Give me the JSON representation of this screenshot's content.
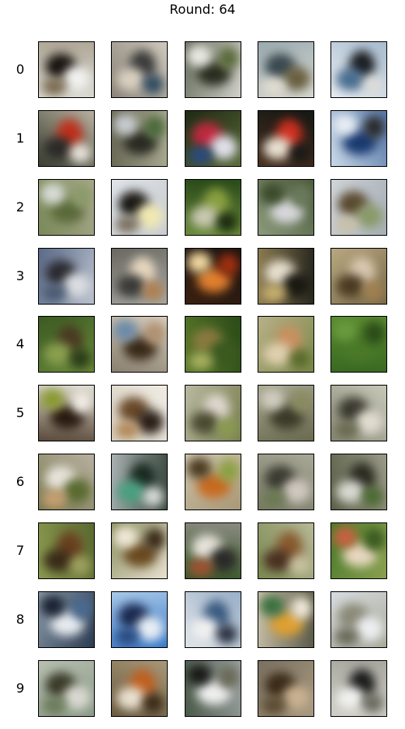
{
  "title": "Round: 64",
  "rows": [
    {
      "label": "0",
      "samples": [
        {
          "bg": [
            "#d8d8d0",
            "#b0a898"
          ],
          "c": [
            "#1a1410",
            "#f0f0ee",
            "#7a6a50"
          ]
        },
        {
          "bg": [
            "#8a8478",
            "#cfc9bd"
          ],
          "c": [
            "#3a3a3a",
            "#d8d0c0",
            "#2e4a60"
          ]
        },
        {
          "bg": [
            "#6a7060",
            "#d0d0c8"
          ],
          "c": [
            "#2a2e20",
            "#eaeae4",
            "#5a6a3a"
          ]
        },
        {
          "bg": [
            "#9aaab0",
            "#d8d8d0"
          ],
          "c": [
            "#3a4a50",
            "#6a6040",
            "#e0dcd0"
          ]
        },
        {
          "bg": [
            "#a8bcd0",
            "#e8ecf0"
          ],
          "c": [
            "#1a1e22",
            "#4a6e90",
            "#dcdcd8"
          ]
        }
      ]
    },
    {
      "label": "1",
      "samples": [
        {
          "bg": [
            "#3a4030",
            "#b8b0a0"
          ],
          "c": [
            "#c0301c",
            "#2a2a28",
            "#e8e4dc"
          ]
        },
        {
          "bg": [
            "#6a6a58",
            "#a8a890"
          ],
          "c": [
            "#2a2a22",
            "#c8ccd0",
            "#4a6a3a"
          ]
        },
        {
          "bg": [
            "#1e2a14",
            "#5a6a3a"
          ],
          "c": [
            "#c02840",
            "#e0e0ea",
            "#2a4a80"
          ]
        },
        {
          "bg": [
            "#141814",
            "#4a3020"
          ],
          "c": [
            "#d03020",
            "#e8e0d0",
            "#1a1a18"
          ]
        },
        {
          "bg": [
            "#5a7aa8",
            "#c8d8e8"
          ],
          "c": [
            "#1a3a70",
            "#e8eef4",
            "#2a2a2a"
          ]
        }
      ]
    },
    {
      "label": "2",
      "samples": [
        {
          "bg": [
            "#7a8a5a",
            "#a8a88a"
          ],
          "c": [
            "#5a6a3a",
            "#d8dcd8",
            "#8a9a6a"
          ]
        },
        {
          "bg": [
            "#e0e4e8",
            "#c8ccd0"
          ],
          "c": [
            "#1a1814",
            "#f0e8b0",
            "#7a7060"
          ]
        },
        {
          "bg": [
            "#2a4a1a",
            "#6a8a3a"
          ],
          "c": [
            "#8aa040",
            "#c8c8b0",
            "#1a2a10"
          ]
        },
        {
          "bg": [
            "#4a5a3a",
            "#8a9a7a"
          ],
          "c": [
            "#d8d8dc",
            "#3a4a2a",
            "#6a7a5a"
          ]
        },
        {
          "bg": [
            "#a8b0b8",
            "#d0d4d8"
          ],
          "c": [
            "#5a4a30",
            "#8a9a6a",
            "#c8c0a8"
          ]
        }
      ]
    },
    {
      "label": "3",
      "samples": [
        {
          "bg": [
            "#5a6a88",
            "#b8c0cc"
          ],
          "c": [
            "#2a2a30",
            "#dadce0",
            "#4a5a70"
          ]
        },
        {
          "bg": [
            "#6a6860",
            "#a8a8a4"
          ],
          "c": [
            "#e8d8c0",
            "#3a3a38",
            "#b08050"
          ]
        },
        {
          "bg": [
            "#1a1410",
            "#3a2010"
          ],
          "c": [
            "#e08030",
            "#f0d8a0",
            "#a03010"
          ]
        },
        {
          "bg": [
            "#2a2a20",
            "#8a7a50"
          ],
          "c": [
            "#e8e0d0",
            "#1a1812",
            "#c8b070"
          ]
        },
        {
          "bg": [
            "#7a6a4a",
            "#b8a880"
          ],
          "c": [
            "#d8c8b0",
            "#4a3a22",
            "#a08050"
          ]
        }
      ]
    },
    {
      "label": "4",
      "samples": [
        {
          "bg": [
            "#3a5a22",
            "#6a8a3a"
          ],
          "c": [
            "#4a3a22",
            "#8aa050",
            "#2a3a18"
          ]
        },
        {
          "bg": [
            "#d8d0c0",
            "#8a8070"
          ],
          "c": [
            "#3a2a18",
            "#6a8aa8",
            "#b09070"
          ]
        },
        {
          "bg": [
            "#2a4a18",
            "#5a7a2a"
          ],
          "c": [
            "#8a7a40",
            "#3a5a20",
            "#a8b060"
          ]
        },
        {
          "bg": [
            "#7a8a4a",
            "#b8b088"
          ],
          "c": [
            "#c89060",
            "#e0d0b0",
            "#5a6a2a"
          ]
        },
        {
          "bg": [
            "#3a6a22",
            "#5a8a30"
          ],
          "c": [
            "#4a7a28",
            "#6a9a40",
            "#2a4a18"
          ]
        }
      ]
    },
    {
      "label": "5",
      "samples": [
        {
          "bg": [
            "#e0dcd0",
            "#5a4a3a"
          ],
          "c": [
            "#2a1a10",
            "#8a9a30",
            "#f0ece4"
          ]
        },
        {
          "bg": [
            "#f0ece4",
            "#d8d0c0"
          ],
          "c": [
            "#6a4a2a",
            "#2a2018",
            "#b08858"
          ]
        },
        {
          "bg": [
            "#7a8050",
            "#b8b8a0"
          ],
          "c": [
            "#e0d8d0",
            "#4a4a30",
            "#8a9a50"
          ]
        },
        {
          "bg": [
            "#6a6a50",
            "#a8a890"
          ],
          "c": [
            "#3a3a28",
            "#d0ccc0",
            "#8a8a60"
          ]
        },
        {
          "bg": [
            "#8a8a78",
            "#c8c8b8"
          ],
          "c": [
            "#3a3a30",
            "#e0dcd0",
            "#6a6a50"
          ]
        }
      ]
    },
    {
      "label": "6",
      "samples": [
        {
          "bg": [
            "#b8b0a0",
            "#7a7a50"
          ],
          "c": [
            "#e8e4dc",
            "#5a6a30",
            "#c8a070"
          ]
        },
        {
          "bg": [
            "#3a4a40",
            "#a8b0b0"
          ],
          "c": [
            "#1a2a20",
            "#4aa080",
            "#d8dcd8"
          ]
        },
        {
          "bg": [
            "#a89878",
            "#d0c8b0"
          ],
          "c": [
            "#c86a20",
            "#4a3a20",
            "#8aa040"
          ]
        },
        {
          "bg": [
            "#7a7a68",
            "#a8a898"
          ],
          "c": [
            "#3a3a30",
            "#d0c8c0",
            "#6a7a50"
          ]
        },
        {
          "bg": [
            "#5a6048",
            "#9a9a88"
          ],
          "c": [
            "#2a2a20",
            "#d8d8d0",
            "#4a6a30"
          ]
        }
      ]
    },
    {
      "label": "7",
      "samples": [
        {
          "bg": [
            "#5a6a30",
            "#8a9a50"
          ],
          "c": [
            "#6a4020",
            "#3a2a18",
            "#a0a060"
          ]
        },
        {
          "bg": [
            "#e8e0d0",
            "#8a9060"
          ],
          "c": [
            "#6a4a20",
            "#f0e8d8",
            "#3a2a18"
          ]
        },
        {
          "bg": [
            "#3a5a2a",
            "#8a8a80"
          ],
          "c": [
            "#e8e4dc",
            "#2a2a28",
            "#a05030"
          ]
        },
        {
          "bg": [
            "#7a8a50",
            "#b8b898"
          ],
          "c": [
            "#8a5a30",
            "#4a3020",
            "#c8c0a0"
          ]
        },
        {
          "bg": [
            "#4a7a2a",
            "#8aa050"
          ],
          "c": [
            "#e8d8c0",
            "#c86040",
            "#3a5a20"
          ]
        }
      ]
    },
    {
      "label": "8",
      "samples": [
        {
          "bg": [
            "#2a3a50",
            "#8a9aa8"
          ],
          "c": [
            "#e8ecf0",
            "#1a2230",
            "#4a6a90"
          ]
        },
        {
          "bg": [
            "#3a7ac8",
            "#a8c8e8"
          ],
          "c": [
            "#1a2a50",
            "#e8eef4",
            "#2a4a80"
          ]
        },
        {
          "bg": [
            "#e0e4e8",
            "#9ab0c8"
          ],
          "c": [
            "#3a5a80",
            "#f0f0f0",
            "#2a3040"
          ]
        },
        {
          "bg": [
            "#c8c0a8",
            "#5a5a48"
          ],
          "c": [
            "#e0a030",
            "#3a7040",
            "#f0e8d8"
          ]
        },
        {
          "bg": [
            "#d8dce0",
            "#a8a898"
          ],
          "c": [
            "#8a8a78",
            "#eceef0",
            "#6a6a58"
          ]
        }
      ]
    },
    {
      "label": "9",
      "samples": [
        {
          "bg": [
            "#8a9a88",
            "#b8c0b0"
          ],
          "c": [
            "#3a3a28",
            "#d8d8d0",
            "#6a7a58"
          ]
        },
        {
          "bg": [
            "#6a5a40",
            "#a89878"
          ],
          "c": [
            "#c06020",
            "#e8e0d0",
            "#3a2a18"
          ]
        },
        {
          "bg": [
            "#4a5a48",
            "#9aa0a0"
          ],
          "c": [
            "#f0f0f0",
            "#1a1a18",
            "#6a6a58"
          ]
        },
        {
          "bg": [
            "#7a7060",
            "#a89a80"
          ],
          "c": [
            "#3a2a18",
            "#c8b090",
            "#5a4a30"
          ]
        },
        {
          "bg": [
            "#a8a8a0",
            "#d0d0c8"
          ],
          "c": [
            "#1a1a18",
            "#f0f0ee",
            "#6a6a60"
          ]
        }
      ]
    }
  ]
}
